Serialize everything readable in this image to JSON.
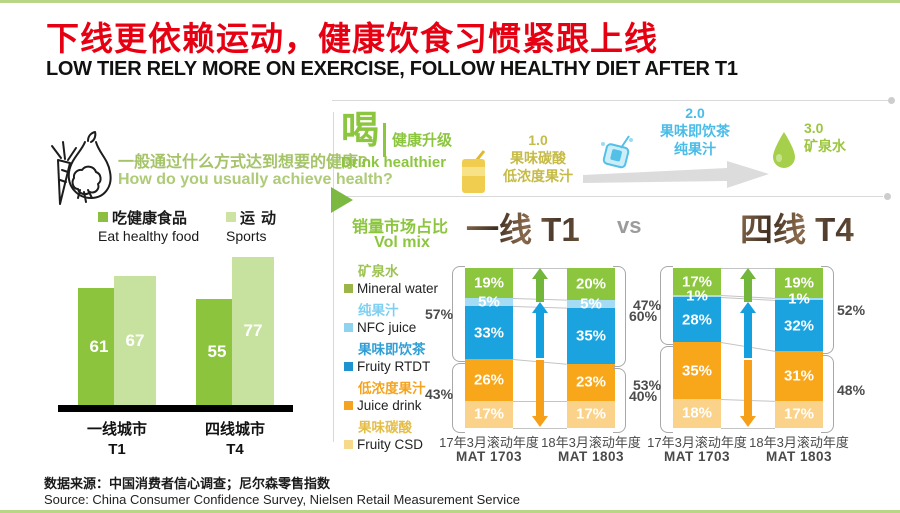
{
  "header": {
    "title_cn": "下线更依赖运动，健康饮食习惯紧跟上线",
    "title_en": "LOW TIER RELY MORE ON EXERCISE, FOLLOW HEALTHY  DIET AFTER T1",
    "title_color": "#e60012"
  },
  "left_panel": {
    "icon": "vegetables-icon",
    "question_cn": "一般通过什么方式达到想要的健康?",
    "question_en": "How do you usually achieve health?",
    "legend": [
      {
        "label_cn": "吃健康食品",
        "label_en": "Eat healthy food",
        "color": "#8cbf3f"
      },
      {
        "label_cn": "运动",
        "label_en": "Sports",
        "color": "#cde3a4"
      }
    ]
  },
  "drink_section": {
    "badge_cn": "喝",
    "subtitle_cn": "健康升级",
    "subtitle_en": "Drink healthier",
    "stages": [
      {
        "num": "1.0",
        "line1": "果味碳酸",
        "line2": "低浓度果汁",
        "color": "#c6bb46",
        "icon": "juice-box-icon"
      },
      {
        "num": "2.0",
        "line1": "果味即饮茶",
        "line2": "纯果汁",
        "color": "#49bce8",
        "icon": "tea-cup-icon"
      },
      {
        "num": "3.0",
        "line1": "矿泉水",
        "line2": "",
        "color": "#9cc63d",
        "icon": "water-drop-icon"
      }
    ]
  },
  "volmix_section": {
    "label_cn": "销量市场占比",
    "label_en": "Vol mix",
    "t1_title": "一线 T1",
    "versus": "vs",
    "t4_title": "四线 T4",
    "legend": [
      {
        "cn": "矿泉水",
        "en": "Mineral water",
        "square": "#9cb548",
        "text_color": "#9cc353"
      },
      {
        "cn": "纯果汁",
        "en": "NFC juice",
        "square": "#8fd3ef",
        "text_color": "#7fd0f0"
      },
      {
        "cn": "果味即饮茶",
        "en": "Fruity RTDT",
        "square": "#1e93cf",
        "text_color": "#2f9fd6"
      },
      {
        "cn": "低浓度果汁",
        "en": "Juice drink",
        "square": "#f4a420",
        "text_color": "#f4a420"
      },
      {
        "cn": "果味碳酸",
        "en": "Fruity CSD",
        "square": "#f6d98a",
        "text_color": "#e5be4a"
      }
    ]
  },
  "source": {
    "line_cn": "数据来源：中国消费者信心调查；尼尔森零售指数",
    "line_en": "Source: China Consumer Confidence Survey, Nielsen Retail Measurement Service"
  },
  "chart_data": [
    {
      "type": "bar",
      "title": "一般通过什么方式达到想要的健康? How do you usually achieve health?",
      "categories": [
        [
          "一线城市",
          "T1"
        ],
        [
          "四线城市",
          "T4"
        ]
      ],
      "series": [
        {
          "name": "吃健康食品 Eat healthy food",
          "color": "#8cc43e",
          "values": [
            61,
            55
          ]
        },
        {
          "name": "运动 Sports",
          "color": "#c7e29e",
          "values": [
            67,
            77
          ]
        }
      ],
      "value_labels": true,
      "ylim": [
        0,
        100
      ],
      "grid": false,
      "legend_position": "top"
    },
    {
      "type": "bar",
      "stacked": true,
      "title": "一线 T1 — 销量市场占比 Vol mix",
      "categories": [
        [
          "17年3月滚动年度",
          "MAT 1703"
        ],
        [
          "18年3月滚动年度",
          "MAT 1803"
        ]
      ],
      "series": [
        {
          "name": "矿泉水 Mineral water",
          "color": "#8cc63f",
          "values": [
            19,
            20
          ]
        },
        {
          "name": "纯果汁 NFC juice",
          "color": "#a5dcf4",
          "values": [
            5,
            5
          ]
        },
        {
          "name": "果味即饮茶 Fruity RTDT",
          "color": "#1ba3e0",
          "values": [
            33,
            35
          ]
        },
        {
          "name": "低浓度果汁 Juice drink",
          "color": "#f8a71b",
          "values": [
            26,
            23
          ]
        },
        {
          "name": "果味碳酸 Fruity CSD",
          "color": "#fbd28a",
          "values": [
            17,
            17
          ]
        }
      ],
      "split_index": 3,
      "group_labels_left": [
        "57%",
        "43%"
      ],
      "group_labels_right": [
        "60%",
        "40%"
      ],
      "unit": "%"
    },
    {
      "type": "bar",
      "stacked": true,
      "title": "四线 T4 — 销量市场占比 Vol mix",
      "categories": [
        [
          "17年3月滚动年度",
          "MAT 1703"
        ],
        [
          "18年3月滚动年度",
          "MAT 1803"
        ]
      ],
      "series": [
        {
          "name": "矿泉水 Mineral water",
          "color": "#8cc63f",
          "values": [
            17,
            19
          ]
        },
        {
          "name": "纯果汁 NFC juice",
          "color": "#a5dcf4",
          "values": [
            1,
            1
          ]
        },
        {
          "name": "果味即饮茶 Fruity RTDT",
          "color": "#1ba3e0",
          "values": [
            28,
            32
          ]
        },
        {
          "name": "低浓度果汁 Juice drink",
          "color": "#f8a71b",
          "values": [
            35,
            31
          ]
        },
        {
          "name": "果味碳酸 Fruity CSD",
          "color": "#fbd28a",
          "values": [
            18,
            17
          ]
        }
      ],
      "split_index": 3,
      "group_labels_left": [
        "47%",
        "53%"
      ],
      "group_labels_right": [
        "52%",
        "48%"
      ],
      "unit": "%"
    }
  ]
}
